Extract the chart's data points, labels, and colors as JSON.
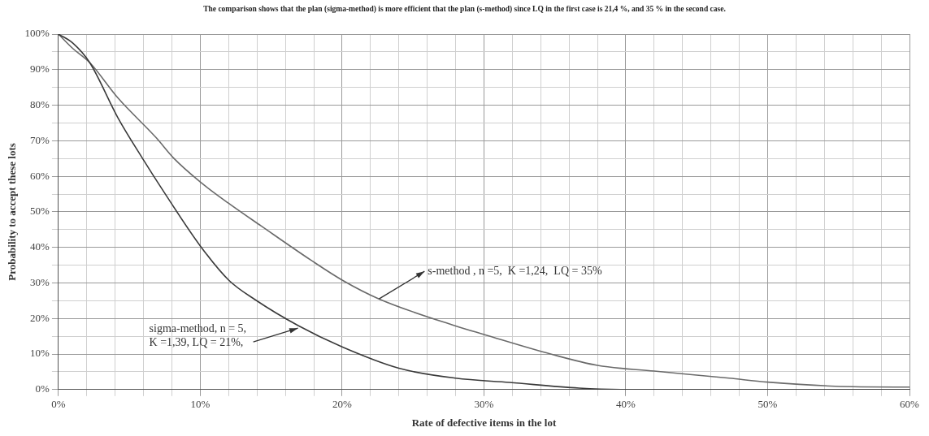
{
  "chart_data": {
    "type": "line",
    "title": "The comparison shows that the plan (sigma-method) is more efficient that the plan (s-method) since LQ in the first case is 21,4 %, and 35 % in the second case.",
    "xlabel": "Rate of defective items in the lot",
    "ylabel": "Probability to accept these lots",
    "series": [
      {
        "color": "#3a3a3a",
        "x": [
          0,
          1,
          2.2,
          4.2,
          5.9,
          7.5,
          10,
          12,
          13.9,
          16.9,
          20,
          24,
          28,
          31.8,
          36.7,
          40,
          50,
          60
        ],
        "values": [
          100,
          97.5,
          92,
          76.4,
          65.2,
          55.2,
          40.4,
          30.8,
          25.2,
          18,
          12,
          6,
          3.2,
          2,
          0.4,
          0,
          0,
          0
        ]
      },
      {
        "color": "#6a6a6a",
        "x": [
          0,
          1,
          2.2,
          4.2,
          6.9,
          8.1,
          10,
          12,
          14.3,
          17.8,
          20,
          22.6,
          28,
          30,
          34.7,
          38,
          42,
          47.3,
          50,
          56,
          60
        ],
        "values": [
          100,
          96,
          92,
          82,
          70.8,
          65.2,
          58.4,
          52.4,
          46,
          36.4,
          30.8,
          25.5,
          17.9,
          15.5,
          10,
          6.8,
          5.2,
          3.2,
          2.1,
          0.8,
          0.7
        ]
      }
    ],
    "xlim": [
      0,
      60
    ],
    "xticks": [
      {
        "value": 0,
        "label": "0%"
      },
      {
        "value": 2,
        "label": null
      },
      {
        "value": 4,
        "label": null
      },
      {
        "value": 6,
        "label": null
      },
      {
        "value": 8,
        "label": null
      },
      {
        "value": 10,
        "label": "10%"
      },
      {
        "value": 12,
        "label": null
      },
      {
        "value": 14,
        "label": null
      },
      {
        "value": 16,
        "label": null
      },
      {
        "value": 18,
        "label": null
      },
      {
        "value": 20,
        "label": "20%"
      },
      {
        "value": 22,
        "label": null
      },
      {
        "value": 24,
        "label": null
      },
      {
        "value": 26,
        "label": null
      },
      {
        "value": 28,
        "label": null
      },
      {
        "value": 30,
        "label": "30%"
      },
      {
        "value": 32,
        "label": null
      },
      {
        "value": 34,
        "label": null
      },
      {
        "value": 36,
        "label": null
      },
      {
        "value": 38,
        "label": null
      },
      {
        "value": 40,
        "label": "40%"
      },
      {
        "value": 42,
        "label": null
      },
      {
        "value": 44,
        "label": null
      },
      {
        "value": 46,
        "label": null
      },
      {
        "value": 48,
        "label": null
      },
      {
        "value": 50,
        "label": "50%"
      },
      {
        "value": 52,
        "label": null
      },
      {
        "value": 54,
        "label": null
      },
      {
        "value": 56,
        "label": null
      },
      {
        "value": 58,
        "label": null
      },
      {
        "value": 60,
        "label": "60%"
      }
    ],
    "ylim": [
      0,
      100
    ],
    "yticks": [
      {
        "value": 0,
        "label": "0%"
      },
      {
        "value": 5,
        "label": null
      },
      {
        "value": 10,
        "label": "10%"
      },
      {
        "value": 15,
        "label": null
      },
      {
        "value": 20,
        "label": "20%"
      },
      {
        "value": 25,
        "label": null
      },
      {
        "value": 30,
        "label": "30%"
      },
      {
        "value": 35,
        "label": null
      },
      {
        "value": 40,
        "label": "40%"
      },
      {
        "value": 45,
        "label": null
      },
      {
        "value": 50,
        "label": "50%"
      },
      {
        "value": 55,
        "label": null
      },
      {
        "value": 60,
        "label": "60%"
      },
      {
        "value": 65,
        "label": null
      },
      {
        "value": 70,
        "label": "70%"
      },
      {
        "value": 75,
        "label": null
      },
      {
        "value": 80,
        "label": "80%"
      },
      {
        "value": 85,
        "label": null
      },
      {
        "value": 90,
        "label": "90%"
      },
      {
        "value": 95,
        "label": null
      },
      {
        "value": 100,
        "label": "100%"
      }
    ],
    "grid": true,
    "marker": "none",
    "line_style": "solid",
    "annotations": [
      {
        "text": "sigma-method, n = 5,\nK =1,39, LQ = 21%,",
        "x": 17,
        "y": 17.5
      },
      {
        "text": "s-method , n =5,  K =1,24,  LQ = 35%",
        "x": 22.6,
        "y": 25.5
      }
    ]
  }
}
